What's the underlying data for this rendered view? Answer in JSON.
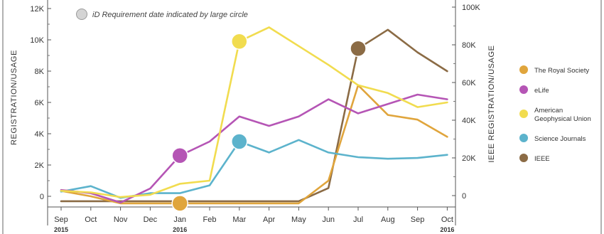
{
  "chart_data": {
    "type": "line",
    "note": "iD Requirement date indicated by large circle",
    "ylabel": "REGISTRATION/USAGE",
    "y2label": "IEEE REGISTRATION/USAGE",
    "ylim": [
      0,
      12000
    ],
    "y2lim": [
      0,
      100000
    ],
    "yticks": [
      "0",
      "2K",
      "4K",
      "6K",
      "8K",
      "10K",
      "12K"
    ],
    "y2ticks": [
      "0",
      "20K",
      "40K",
      "60K",
      "80K",
      "100K"
    ],
    "x": [
      "Sep",
      "Oct",
      "Nov",
      "Dec",
      "Jan",
      "Feb",
      "Mar",
      "Apr",
      "May",
      "Jun",
      "Jul",
      "Aug",
      "Sep",
      "Oct"
    ],
    "x_years": [
      {
        "index": 0,
        "label": "2015"
      },
      {
        "index": 4,
        "label": "2016"
      },
      {
        "index": 13,
        "label": "2016"
      }
    ],
    "legend_position": "right",
    "series": [
      {
        "name": "The Royal Society",
        "color": "#e0a53c",
        "axis": "left",
        "values": [
          350,
          0,
          -450,
          -450,
          -450,
          -450,
          -450,
          -450,
          -450,
          1000,
          7100,
          5200,
          4900,
          3800
        ],
        "requirement_index": 4
      },
      {
        "name": "eLife",
        "color": "#b555b5",
        "axis": "left",
        "values": [
          400,
          200,
          -400,
          500,
          2600,
          3500,
          5100,
          4500,
          5100,
          6200,
          5300,
          5900,
          6500,
          6200
        ],
        "requirement_index": 4
      },
      {
        "name": "American Geophysical Union",
        "color": "#f1dc4f",
        "axis": "left",
        "values": [
          350,
          250,
          -50,
          100,
          800,
          1000,
          9900,
          10800,
          9600,
          8400,
          7100,
          6600,
          5700,
          6000
        ],
        "requirement_index": 6
      },
      {
        "name": "Science Journals",
        "color": "#5cb3cc",
        "axis": "left",
        "values": [
          300,
          650,
          -100,
          200,
          200,
          700,
          3500,
          2800,
          3600,
          2800,
          2500,
          2400,
          2450,
          2650
        ],
        "requirement_index": 6
      },
      {
        "name": "IEEE",
        "color": "#8b6b45",
        "axis": "right",
        "values": [
          -3000,
          -3000,
          -3000,
          -3000,
          -3000,
          -3000,
          -3000,
          -3000,
          -3000,
          4000,
          78000,
          88000,
          76000,
          66000
        ],
        "requirement_index": 10
      }
    ]
  }
}
